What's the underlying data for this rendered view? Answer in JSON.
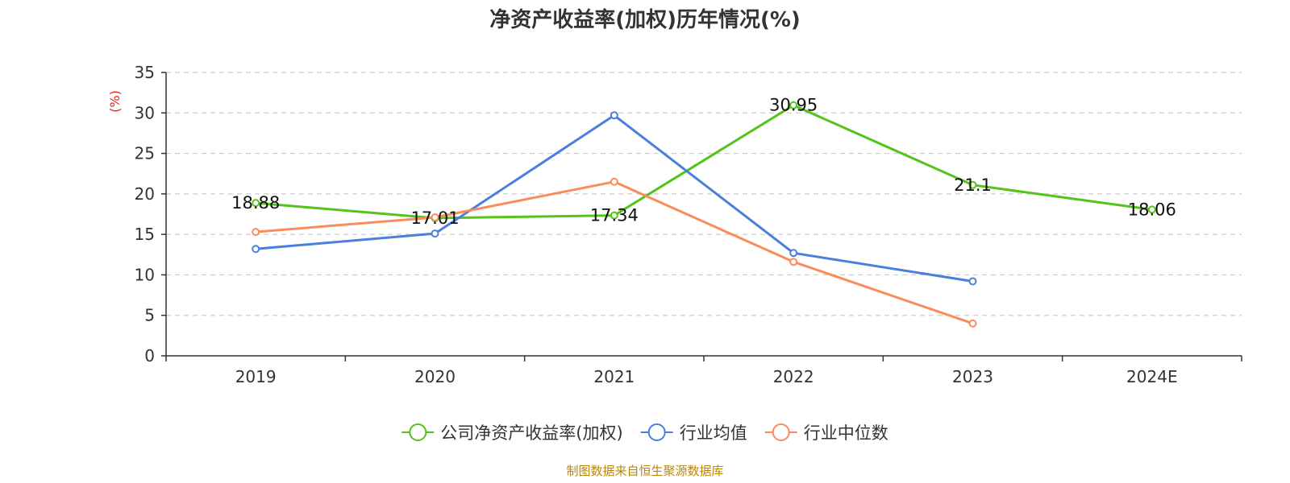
{
  "chart_data": {
    "type": "line",
    "title": "净资产收益率(加权)历年情况(%)",
    "ylabel": "(%)",
    "xlabel": "",
    "categories": [
      "2019",
      "2020",
      "2021",
      "2022",
      "2023",
      "2024E"
    ],
    "y_ticks": [
      "0",
      "5",
      "10",
      "15",
      "20",
      "25",
      "30",
      "35"
    ],
    "ylim": [
      0,
      35
    ],
    "grid": true,
    "legend_position": "bottom-center",
    "series": [
      {
        "name": "公司净资产收益率(加权)",
        "color": "#52c41a",
        "values": [
          18.88,
          17.01,
          17.34,
          30.95,
          21.1,
          18.06
        ],
        "labels": [
          "18.88",
          "17.01",
          "17.34",
          "30.95",
          "21.1",
          "18.06"
        ],
        "show_labels": true
      },
      {
        "name": "行业均值",
        "color": "#4a7fdc",
        "values": [
          13.2,
          15.1,
          29.7,
          12.7,
          9.2,
          null
        ],
        "show_labels": false
      },
      {
        "name": "行业中位数",
        "color": "#fa8c5a",
        "values": [
          15.3,
          17.1,
          21.5,
          11.6,
          4.0,
          null
        ],
        "show_labels": false
      }
    ]
  },
  "source_note": "制图数据来自恒生聚源数据库"
}
